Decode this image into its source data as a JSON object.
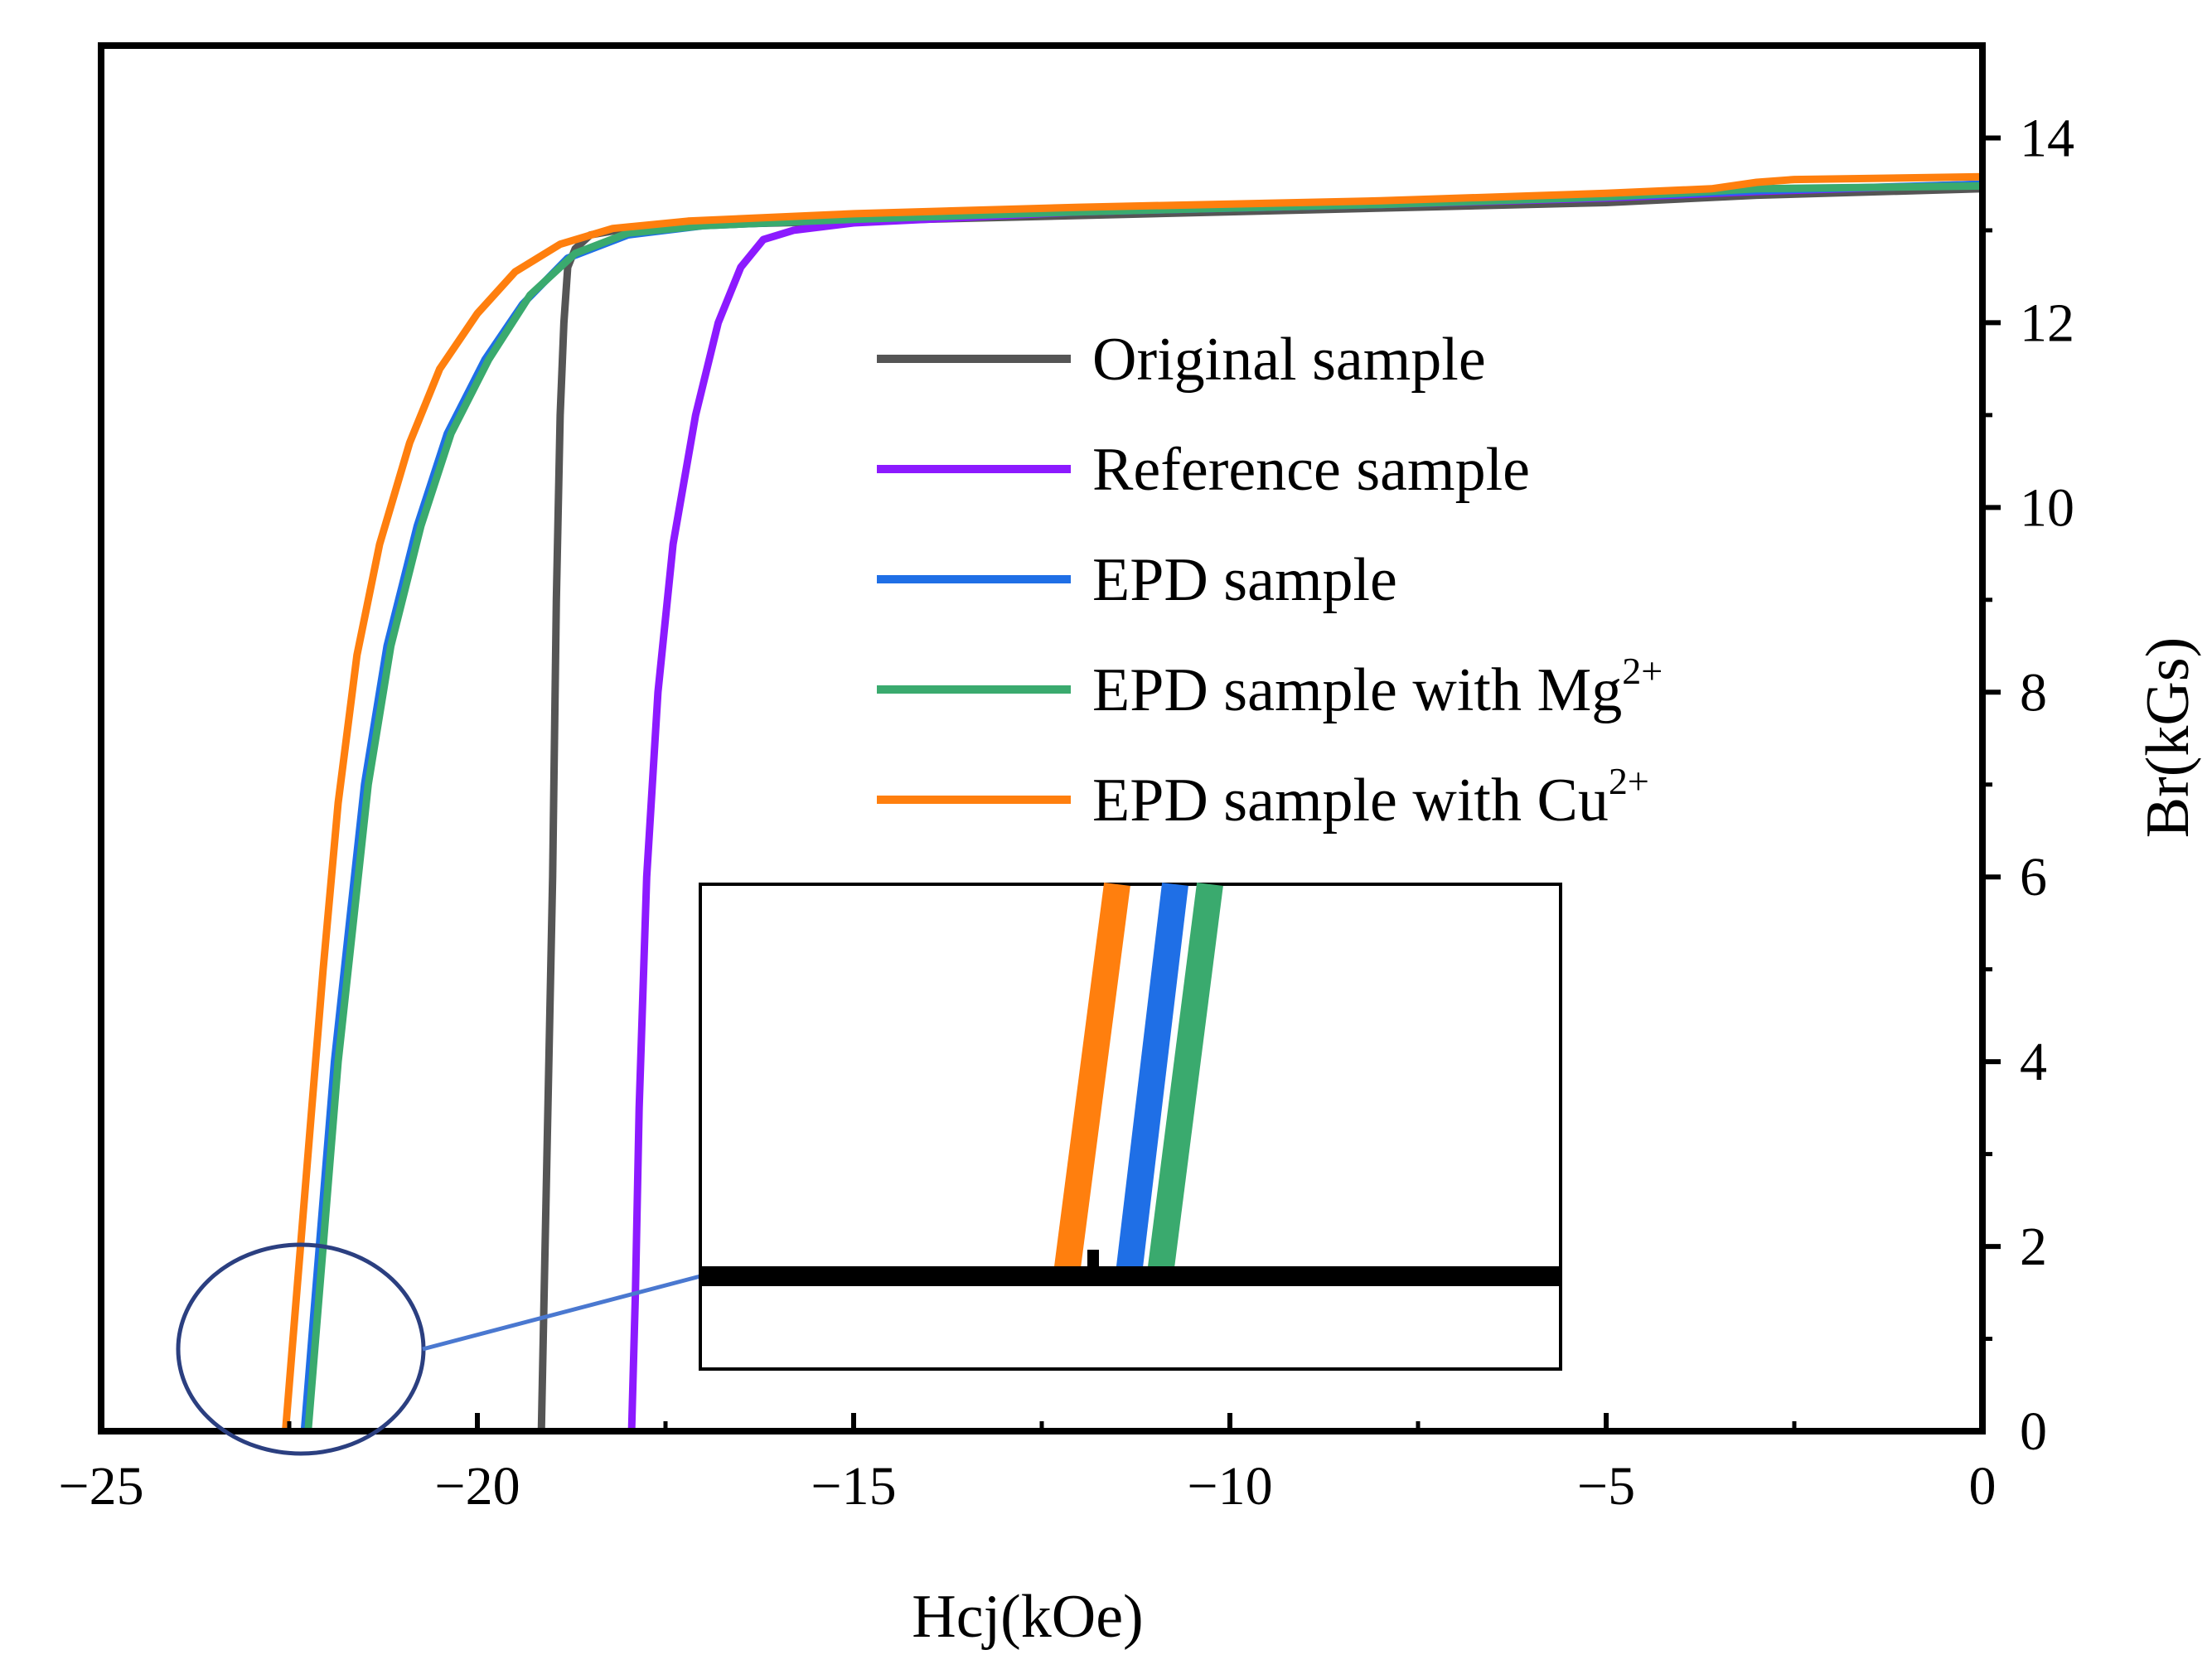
{
  "chart_data": {
    "type": "line",
    "title": "",
    "xlabel": "Hcj(kOe)",
    "ylabel": "Br(kGs)",
    "xlim": [
      -25,
      0
    ],
    "ylim": [
      0,
      15
    ],
    "x_ticks": [
      -25,
      -20,
      -15,
      -10,
      -5,
      0
    ],
    "x_tick_labels": [
      "−25",
      "−20",
      "−15",
      "−10",
      "−5",
      "0"
    ],
    "y_ticks": [
      0,
      2,
      4,
      6,
      8,
      10,
      12,
      14
    ],
    "y_tick_labels": [
      "0",
      "2",
      "4",
      "6",
      "8",
      "10",
      "12",
      "14"
    ],
    "y_axis_side": "right",
    "legend_position": "center-right",
    "series": [
      {
        "name": "Original sample",
        "color": "#555555",
        "x": [
          -19.15,
          -19.1,
          -19.0,
          -18.95,
          -18.9,
          -18.85,
          -18.8,
          -18.7,
          -18.5,
          -18.0,
          -17.0,
          -15.0,
          -10.0,
          -5.0,
          -3.0,
          0.0
        ],
        "y": [
          0.0,
          2.0,
          6.0,
          9.0,
          11.0,
          12.0,
          12.6,
          12.8,
          12.95,
          13.02,
          13.06,
          13.1,
          13.2,
          13.3,
          13.38,
          13.45
        ]
      },
      {
        "name": "Reference sample",
        "color": "#8C1AFF",
        "x": [
          -17.95,
          -17.9,
          -17.85,
          -17.75,
          -17.6,
          -17.4,
          -17.1,
          -16.8,
          -16.5,
          -16.2,
          -15.8,
          -15.0,
          -12.0,
          -8.0,
          -5.0,
          -3.0,
          0.0
        ],
        "y": [
          0.0,
          1.5,
          3.5,
          6.0,
          8.0,
          9.6,
          11.0,
          12.0,
          12.6,
          12.9,
          13.0,
          13.08,
          13.2,
          13.28,
          13.35,
          13.42,
          13.5
        ]
      },
      {
        "name": "EPD sample",
        "color": "#1F6FE6",
        "x": [
          -22.3,
          -22.2,
          -22.1,
          -22.0,
          -21.9,
          -21.7,
          -21.5,
          -21.2,
          -20.8,
          -20.4,
          -19.9,
          -19.4,
          -18.8,
          -18.0,
          -17.0,
          -15.0,
          -12.0,
          -8.0,
          -5.0,
          -3.0,
          0.0
        ],
        "y": [
          0.0,
          1.0,
          2.0,
          3.0,
          4.0,
          5.5,
          7.0,
          8.5,
          9.8,
          10.8,
          11.6,
          12.2,
          12.7,
          12.95,
          13.05,
          13.12,
          13.2,
          13.28,
          13.36,
          13.43,
          13.5
        ]
      },
      {
        "name": "EPD sample with Mg",
        "name_sup": "2+",
        "color": "#3AAA6E",
        "x": [
          -22.25,
          -22.15,
          -22.05,
          -21.95,
          -21.85,
          -21.65,
          -21.45,
          -21.15,
          -20.75,
          -20.35,
          -19.85,
          -19.3,
          -18.7,
          -18.0,
          -17.0,
          -15.0,
          -12.0,
          -8.0,
          -5.0,
          -3.0,
          0.0
        ],
        "y": [
          0.0,
          1.0,
          2.0,
          3.0,
          4.0,
          5.5,
          7.0,
          8.5,
          9.8,
          10.8,
          11.6,
          12.3,
          12.75,
          12.97,
          13.05,
          13.12,
          13.2,
          13.28,
          13.36,
          13.45,
          13.48
        ]
      },
      {
        "name": "EPD sample with Cu",
        "name_sup": "2+",
        "color": "#FF7F0E",
        "x": [
          -22.55,
          -22.45,
          -22.35,
          -22.2,
          -22.05,
          -21.85,
          -21.6,
          -21.3,
          -20.9,
          -20.5,
          -20.0,
          -19.5,
          -18.9,
          -18.2,
          -17.2,
          -15.0,
          -12.0,
          -8.0,
          -5.0,
          -3.6,
          -3.0,
          -2.5,
          0.0
        ],
        "y": [
          0.0,
          1.0,
          2.0,
          3.5,
          5.0,
          6.8,
          8.4,
          9.6,
          10.7,
          11.5,
          12.1,
          12.55,
          12.85,
          13.02,
          13.1,
          13.18,
          13.25,
          13.32,
          13.4,
          13.45,
          13.52,
          13.55,
          13.58
        ]
      }
    ],
    "annotations": [
      {
        "type": "zoom-circle",
        "description": "ellipse highlighting curve intercepts near Hcj = -22 kOe, connected by a line to an inset box",
        "center_x": -22.0,
        "center_y": 0.95
      },
      {
        "type": "inset",
        "description": "magnified view of Cu, EPD and Mg curves crossing Br = 0 on a thick black baseline",
        "series_order": [
          "EPD sample with Cu",
          "EPD sample",
          "EPD sample with Mg"
        ]
      }
    ]
  }
}
